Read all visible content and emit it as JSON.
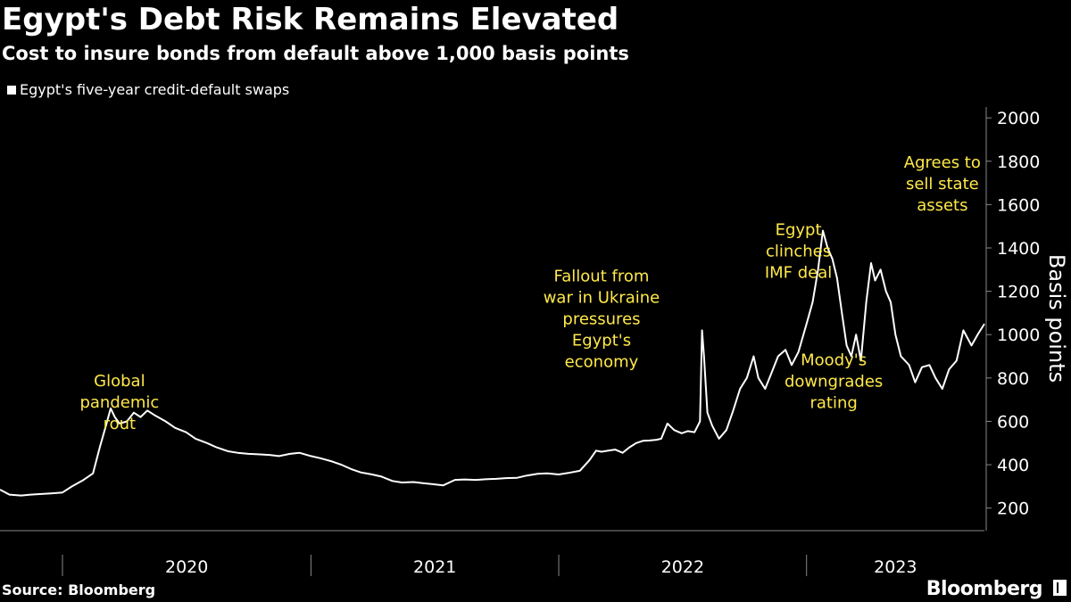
{
  "chart_data": {
    "type": "line",
    "title": "Egypt's Debt Risk Remains Elevated",
    "subtitle": "Cost to insure bonds from default above 1,000 basis points",
    "ylabel": "Basis points",
    "ylim": [
      100,
      2050
    ],
    "yticks": [
      200,
      400,
      600,
      800,
      1000,
      1200,
      1400,
      1600,
      1800,
      2000
    ],
    "xlim": [
      "2019-10-01",
      "2023-09-20"
    ],
    "year_labels": [
      "2020",
      "2021",
      "2022",
      "2023"
    ],
    "grid": false,
    "legend_position": "top-left",
    "series": [
      {
        "name": "Egypt's five-year credit-default swaps",
        "color": "#ffffff",
        "points": [
          [
            "2019-10-01",
            285
          ],
          [
            "2019-10-15",
            262
          ],
          [
            "2019-11-01",
            258
          ],
          [
            "2019-11-15",
            262
          ],
          [
            "2019-12-01",
            265
          ],
          [
            "2019-12-15",
            268
          ],
          [
            "2020-01-01",
            272
          ],
          [
            "2020-01-15",
            300
          ],
          [
            "2020-02-01",
            330
          ],
          [
            "2020-02-15",
            360
          ],
          [
            "2020-02-25",
            480
          ],
          [
            "2020-03-05",
            580
          ],
          [
            "2020-03-12",
            660
          ],
          [
            "2020-03-18",
            620
          ],
          [
            "2020-03-25",
            590
          ],
          [
            "2020-04-05",
            600
          ],
          [
            "2020-04-15",
            640
          ],
          [
            "2020-04-25",
            620
          ],
          [
            "2020-05-05",
            650
          ],
          [
            "2020-05-15",
            630
          ],
          [
            "2020-06-01",
            600
          ],
          [
            "2020-06-15",
            570
          ],
          [
            "2020-07-01",
            550
          ],
          [
            "2020-07-15",
            520
          ],
          [
            "2020-08-01",
            500
          ],
          [
            "2020-08-15",
            480
          ],
          [
            "2020-09-01",
            462
          ],
          [
            "2020-09-15",
            455
          ],
          [
            "2020-10-01",
            450
          ],
          [
            "2020-10-15",
            448
          ],
          [
            "2020-11-01",
            445
          ],
          [
            "2020-11-15",
            440
          ],
          [
            "2020-12-01",
            450
          ],
          [
            "2020-12-15",
            455
          ],
          [
            "2021-01-01",
            440
          ],
          [
            "2021-01-15",
            430
          ],
          [
            "2021-02-01",
            415
          ],
          [
            "2021-02-15",
            400
          ],
          [
            "2021-03-01",
            380
          ],
          [
            "2021-03-15",
            365
          ],
          [
            "2021-04-01",
            355
          ],
          [
            "2021-04-15",
            345
          ],
          [
            "2021-05-01",
            325
          ],
          [
            "2021-05-15",
            318
          ],
          [
            "2021-06-01",
            320
          ],
          [
            "2021-06-15",
            315
          ],
          [
            "2021-07-01",
            310
          ],
          [
            "2021-07-15",
            305
          ],
          [
            "2021-08-01",
            330
          ],
          [
            "2021-08-15",
            332
          ],
          [
            "2021-09-01",
            330
          ],
          [
            "2021-09-15",
            333
          ],
          [
            "2021-10-01",
            335
          ],
          [
            "2021-10-15",
            338
          ],
          [
            "2021-11-01",
            340
          ],
          [
            "2021-11-15",
            350
          ],
          [
            "2021-12-01",
            358
          ],
          [
            "2021-12-15",
            360
          ],
          [
            "2022-01-01",
            355
          ],
          [
            "2022-01-15",
            362
          ],
          [
            "2022-02-01",
            372
          ],
          [
            "2022-02-15",
            420
          ],
          [
            "2022-02-25",
            465
          ],
          [
            "2022-03-05",
            460
          ],
          [
            "2022-03-15",
            465
          ],
          [
            "2022-03-25",
            470
          ],
          [
            "2022-04-05",
            455
          ],
          [
            "2022-04-15",
            480
          ],
          [
            "2022-04-25",
            500
          ],
          [
            "2022-05-05",
            510
          ],
          [
            "2022-05-15",
            512
          ],
          [
            "2022-05-25",
            515
          ],
          [
            "2022-06-01",
            520
          ],
          [
            "2022-06-10",
            590
          ],
          [
            "2022-06-20",
            560
          ],
          [
            "2022-07-01",
            545
          ],
          [
            "2022-07-10",
            555
          ],
          [
            "2022-07-20",
            550
          ],
          [
            "2022-07-28",
            600
          ],
          [
            "2022-07-31",
            1020
          ],
          [
            "2022-08-03",
            900
          ],
          [
            "2022-08-08",
            640
          ],
          [
            "2022-08-15",
            580
          ],
          [
            "2022-08-25",
            520
          ],
          [
            "2022-09-05",
            560
          ],
          [
            "2022-09-15",
            650
          ],
          [
            "2022-09-25",
            750
          ],
          [
            "2022-10-05",
            800
          ],
          [
            "2022-10-15",
            900
          ],
          [
            "2022-10-22",
            800
          ],
          [
            "2022-11-01",
            750
          ],
          [
            "2022-11-10",
            820
          ],
          [
            "2022-11-20",
            900
          ],
          [
            "2022-12-01",
            930
          ],
          [
            "2022-12-10",
            860
          ],
          [
            "2022-12-20",
            920
          ],
          [
            "2023-01-01",
            1050
          ],
          [
            "2023-01-10",
            1150
          ],
          [
            "2023-01-18",
            1300
          ],
          [
            "2023-01-25",
            1480
          ],
          [
            "2023-02-01",
            1400
          ],
          [
            "2023-02-08",
            1350
          ],
          [
            "2023-02-15",
            1260
          ],
          [
            "2023-02-22",
            1100
          ],
          [
            "2023-03-01",
            950
          ],
          [
            "2023-03-08",
            900
          ],
          [
            "2023-03-15",
            1000
          ],
          [
            "2023-03-22",
            880
          ],
          [
            "2023-03-30",
            1150
          ],
          [
            "2023-04-06",
            1330
          ],
          [
            "2023-04-12",
            1250
          ],
          [
            "2023-04-20",
            1300
          ],
          [
            "2023-04-28",
            1200
          ],
          [
            "2023-05-05",
            1150
          ],
          [
            "2023-05-12",
            1000
          ],
          [
            "2023-05-20",
            900
          ],
          [
            "2023-06-01",
            860
          ],
          [
            "2023-06-10",
            780
          ],
          [
            "2023-06-20",
            850
          ],
          [
            "2023-07-01",
            860
          ],
          [
            "2023-07-10",
            800
          ],
          [
            "2023-07-20",
            750
          ],
          [
            "2023-07-30",
            840
          ],
          [
            "2023-08-10",
            880
          ],
          [
            "2023-08-20",
            1020
          ],
          [
            "2023-09-01",
            950
          ],
          [
            "2023-09-10",
            1000
          ],
          [
            "2023-09-20",
            1050
          ]
        ]
      }
    ],
    "annotations": [
      {
        "text": "Global pandemic rout",
        "lines": [
          "Global",
          "pandemic",
          "rout"
        ],
        "date": "2020-03-25",
        "value": 763
      },
      {
        "text": "Fallout from war in Ukraine pressures Egypt's economy",
        "lines": [
          "Fallout from",
          "war in Ukraine",
          "pressures",
          "Egypt's",
          "economy"
        ],
        "date": "2022-03-05",
        "value": 1245
      },
      {
        "text": "Egypt clinches IMF deal",
        "lines": [
          "Egypt",
          "clinches",
          "IMF deal"
        ],
        "date": "2022-12-20",
        "value": 1460
      },
      {
        "text": "Moody's downgrades rating",
        "lines": [
          "Moody's",
          "downgrades",
          "rating"
        ],
        "date": "2023-02-10",
        "value": 860
      },
      {
        "text": "Agrees to sell state assets",
        "lines": [
          "Agrees to",
          "sell state",
          "assets"
        ],
        "date": "2023-07-20",
        "value": 1770
      }
    ]
  },
  "source": "Source: Bloomberg",
  "brand": "Bloomberg"
}
